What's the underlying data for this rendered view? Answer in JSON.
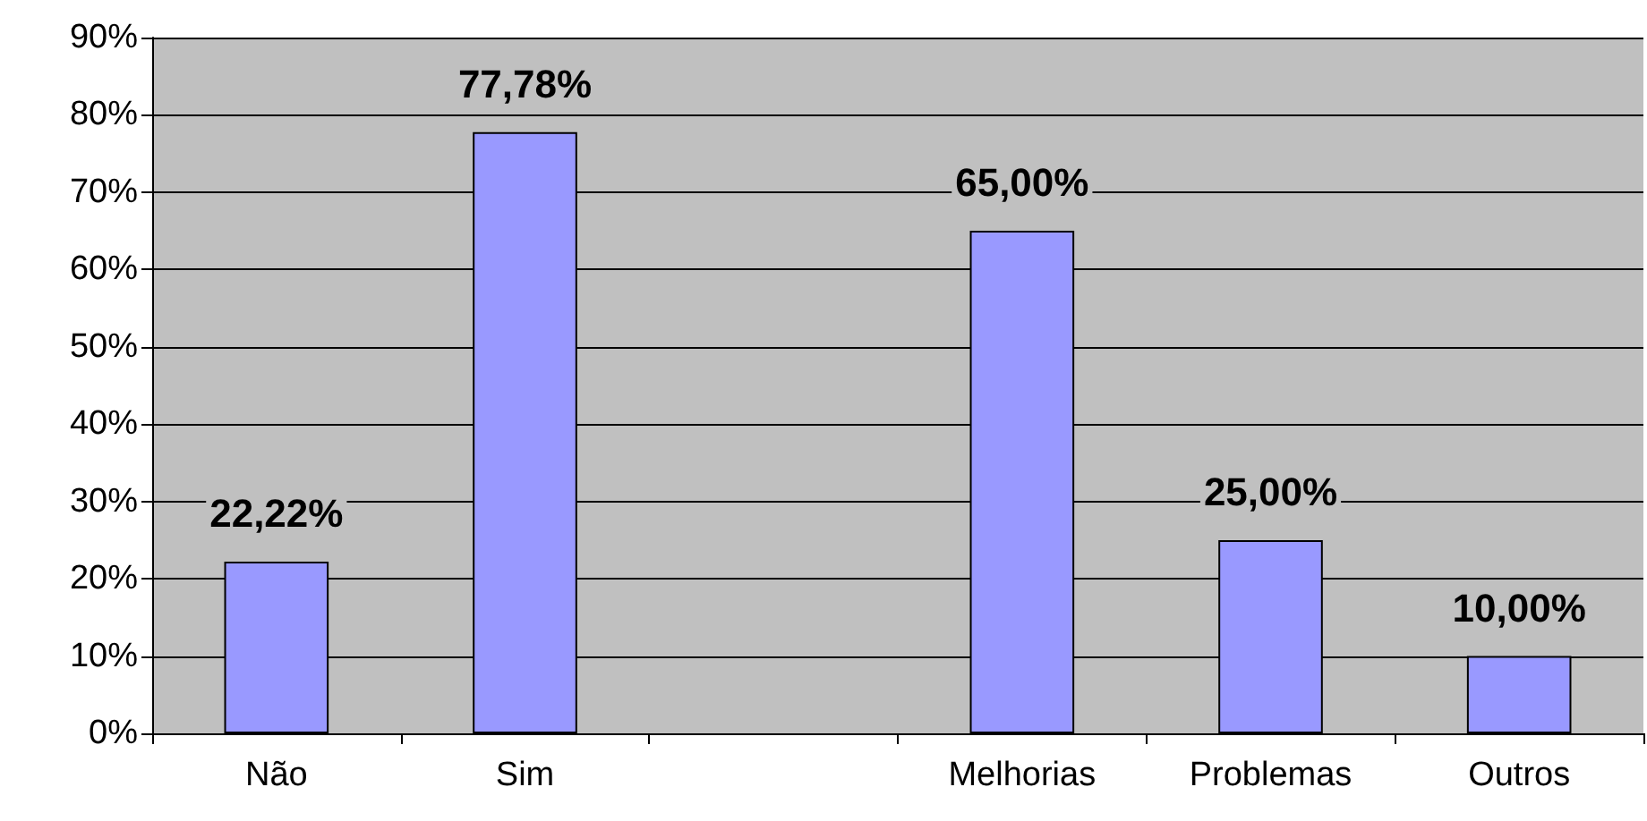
{
  "chart_data": {
    "type": "bar",
    "categories": [
      "Não",
      "Sim",
      null,
      "Melhorias",
      "Problemas",
      "Outros"
    ],
    "values": [
      22.22,
      77.78,
      null,
      65,
      25,
      10
    ],
    "value_labels": [
      "22,22%",
      "77,78%",
      null,
      "65,00%",
      "25,00%",
      "10,00%"
    ],
    "color": "#9999ff",
    "ylim": [
      0,
      90
    ],
    "yticks": [
      {
        "value": 0,
        "label": "0%"
      },
      {
        "value": 10,
        "label": "10%"
      },
      {
        "value": 20,
        "label": "20%"
      },
      {
        "value": 30,
        "label": "30%"
      },
      {
        "value": 40,
        "label": "40%"
      },
      {
        "value": 50,
        "label": "50%"
      },
      {
        "value": 60,
        "label": "60%"
      },
      {
        "value": 70,
        "label": "70%"
      },
      {
        "value": 80,
        "label": "80%"
      },
      {
        "value": 90,
        "label": "90%"
      }
    ],
    "grid": "y"
  }
}
